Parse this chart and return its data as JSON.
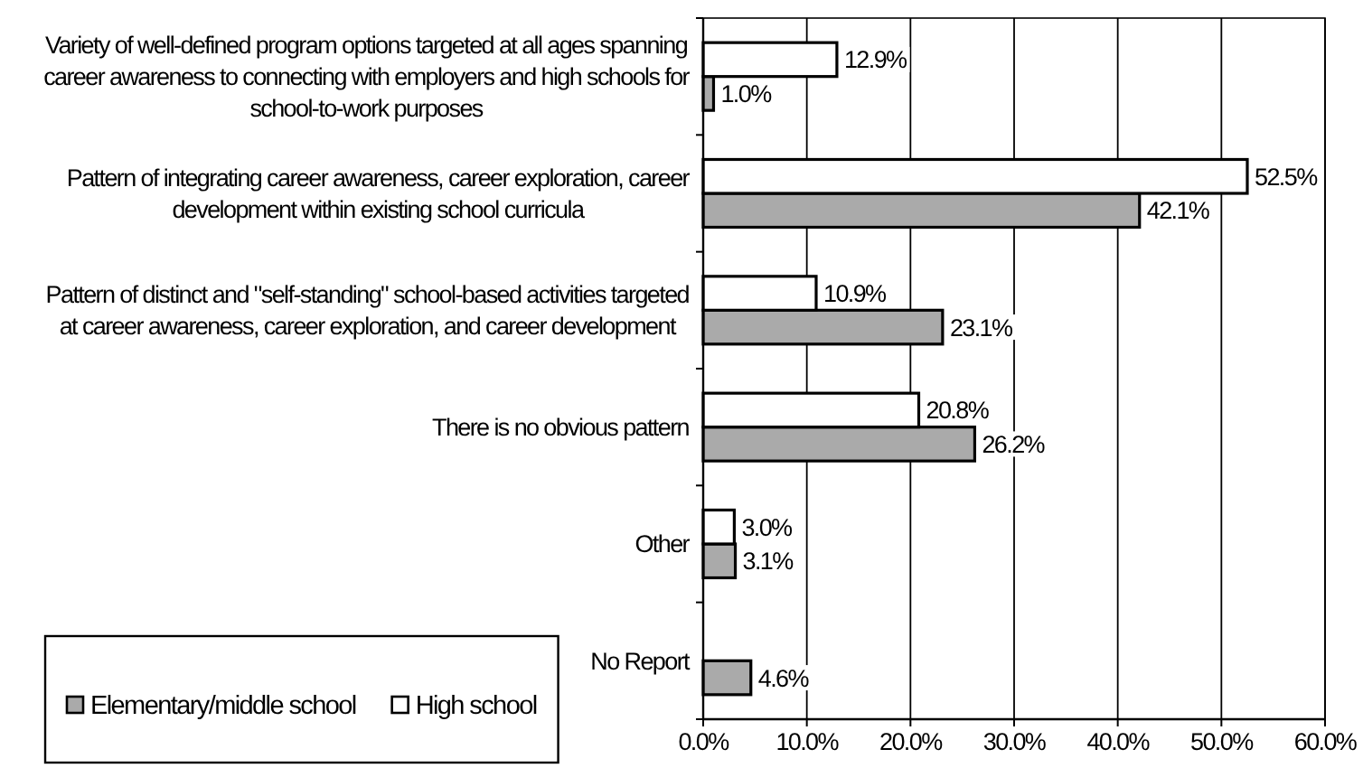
{
  "chart_data": {
    "type": "bar",
    "orientation": "horizontal",
    "categories": [
      "Variety of well-defined program options targeted at all ages spanning career awareness to connecting with employers and high schools for school-to-work purposes",
      "Pattern of integrating career awareness, career exploration, career development within existing school curricula",
      "Pattern of distinct and \"self-standing\" school-based activities targeted at career awareness, career exploration, and career development",
      "There is no obvious pattern",
      "Other",
      "No Report"
    ],
    "series": [
      {
        "name": "Elementary/middle school",
        "color": "#aaaaaa",
        "values": [
          1.0,
          42.1,
          23.1,
          26.2,
          3.1,
          4.6
        ],
        "value_labels": [
          "1.0%",
          "42.1%",
          "23.1%",
          "26.2%",
          "3.1%",
          "4.6%"
        ]
      },
      {
        "name": "High school",
        "color": "#ffffff",
        "values": [
          12.9,
          52.5,
          10.9,
          20.8,
          3.0,
          null
        ],
        "value_labels": [
          "12.9%",
          "52.5%",
          "10.9%",
          "20.8%",
          "3.0%",
          null
        ]
      }
    ],
    "xlim": [
      0,
      60
    ],
    "xticks": [
      {
        "value": 0,
        "label": "0.0%"
      },
      {
        "value": 10,
        "label": "10.0%"
      },
      {
        "value": 20,
        "label": "20.0%"
      },
      {
        "value": 30,
        "label": "30.0%"
      },
      {
        "value": 40,
        "label": "40.0%"
      },
      {
        "value": 50,
        "label": "50.0%"
      },
      {
        "value": 60,
        "label": "60.0%"
      }
    ],
    "grid": "x",
    "legend": "bottom left"
  }
}
